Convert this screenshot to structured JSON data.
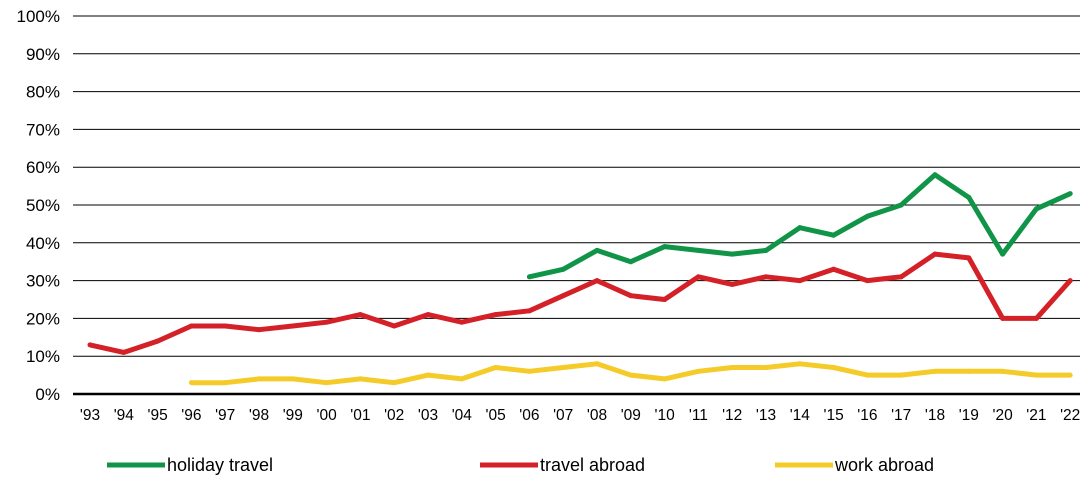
{
  "chart_data": {
    "type": "line",
    "title": "",
    "xlabel": "",
    "ylabel": "",
    "ylim": [
      0,
      100
    ],
    "y_ticks": [
      "0%",
      "10%",
      "20%",
      "30%",
      "40%",
      "50%",
      "60%",
      "70%",
      "80%",
      "90%",
      "100%"
    ],
    "categories": [
      "'93",
      "'94",
      "'95",
      "'96",
      "'97",
      "'98",
      "'99",
      "'00",
      "'01",
      "'02",
      "'03",
      "'04",
      "'05",
      "'06",
      "'07",
      "'08",
      "'09",
      "'10",
      "'11",
      "'12",
      "'13",
      "'14",
      "'15",
      "'16",
      "'17",
      "'18",
      "'19",
      "'20",
      "'21",
      "'22"
    ],
    "grid": true,
    "legend_position": "bottom",
    "series": [
      {
        "name": "holiday travel",
        "color": "#109447",
        "values": [
          null,
          null,
          null,
          null,
          null,
          null,
          null,
          null,
          null,
          null,
          null,
          null,
          null,
          31,
          33,
          38,
          35,
          39,
          38,
          37,
          38,
          44,
          42,
          47,
          50,
          58,
          52,
          37,
          49,
          53
        ]
      },
      {
        "name": "travel abroad",
        "color": "#d42027",
        "values": [
          13,
          11,
          14,
          18,
          18,
          17,
          18,
          19,
          21,
          18,
          21,
          19,
          21,
          22,
          26,
          30,
          26,
          25,
          31,
          29,
          31,
          30,
          33,
          30,
          31,
          37,
          36,
          20,
          20,
          30
        ]
      },
      {
        "name": "work abroad",
        "color": "#f5cb2a",
        "values": [
          null,
          null,
          null,
          3,
          3,
          4,
          4,
          3,
          4,
          3,
          5,
          4,
          7,
          6,
          7,
          8,
          5,
          4,
          6,
          7,
          7,
          8,
          7,
          5,
          5,
          6,
          6,
          6,
          5,
          5
        ]
      }
    ]
  }
}
